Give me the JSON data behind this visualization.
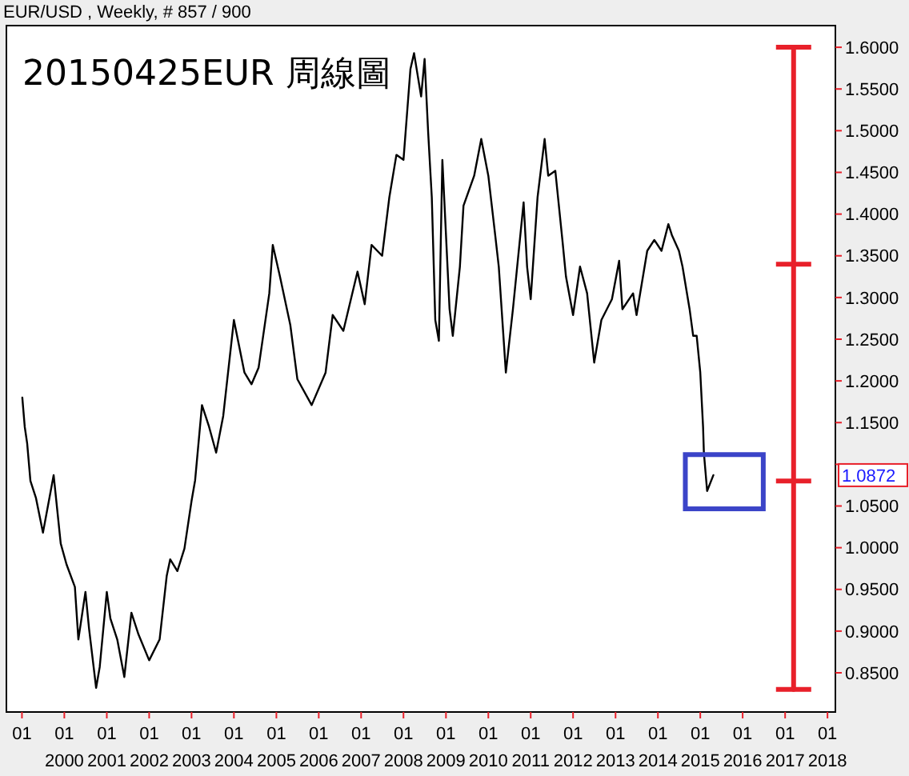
{
  "chart_data": {
    "type": "line",
    "title": "20150425EUR 周線圖",
    "subtitle": "EUR/USD , Weekly, # 857 / 900",
    "xlim": [
      "1998-08-20",
      "2018-03-10"
    ],
    "ylim": [
      0.803,
      1.626
    ],
    "xticks": [
      {
        "value": "1999-01-01",
        "label": "01"
      },
      {
        "value": "2000-01-01",
        "label": "01\n2000"
      },
      {
        "value": "2001-01-01",
        "label": "01\n2001"
      },
      {
        "value": "2002-01-01",
        "label": "01\n2002"
      },
      {
        "value": "2003-01-01",
        "label": "01\n2003"
      },
      {
        "value": "2004-01-01",
        "label": "01\n2004"
      },
      {
        "value": "2005-01-01",
        "label": "01\n2005"
      },
      {
        "value": "2006-01-01",
        "label": "01\n2006"
      },
      {
        "value": "2007-01-01",
        "label": "01\n2007"
      },
      {
        "value": "2008-01-01",
        "label": "01\n2008"
      },
      {
        "value": "2009-01-01",
        "label": "01\n2009"
      },
      {
        "value": "2010-01-01",
        "label": "01\n2010"
      },
      {
        "value": "2011-01-01",
        "label": "01\n2011"
      },
      {
        "value": "2012-01-01",
        "label": "01\n2012"
      },
      {
        "value": "2013-01-01",
        "label": "01\n2013"
      },
      {
        "value": "2014-01-01",
        "label": "01\n2014"
      },
      {
        "value": "2015-01-01",
        "label": "01\n2015"
      },
      {
        "value": "2016-01-01",
        "label": "01\n2016"
      },
      {
        "value": "2017-01-01",
        "label": "01\n2017"
      },
      {
        "value": "2018-01-01",
        "label": "01\n2018"
      }
    ],
    "yticks": [
      {
        "value": 0.85,
        "label": "0.8500"
      },
      {
        "value": 0.9,
        "label": "0.9000"
      },
      {
        "value": 0.95,
        "label": "0.9500"
      },
      {
        "value": 1,
        "label": "1.0000"
      },
      {
        "value": 1.05,
        "label": "1.0500"
      },
      {
        "value": 1.1,
        "label": null
      },
      {
        "value": 1.15,
        "label": "1.1500"
      },
      {
        "value": 1.2,
        "label": "1.2000"
      },
      {
        "value": 1.25,
        "label": "1.2500"
      },
      {
        "value": 1.3,
        "label": "1.3000"
      },
      {
        "value": 1.35,
        "label": "1.3500"
      },
      {
        "value": 1.4,
        "label": "1.4000"
      },
      {
        "value": 1.45,
        "label": "1.4500"
      },
      {
        "value": 1.5,
        "label": "1.5000"
      },
      {
        "value": 1.55,
        "label": "1.5500"
      },
      {
        "value": 1.6,
        "label": "1.6000"
      }
    ],
    "grid": false,
    "marker": "none",
    "line_style": "solid",
    "x": [
      "1999-01-04",
      "1999-01-25",
      "1999-02-15",
      "1999-03-15",
      "1999-05",
      "1999-07",
      "1999-10",
      "1999-12",
      "2000-01-20",
      "2000-04",
      "2000-05",
      "2000-07",
      "2000-08",
      "2000-10",
      "2000-11",
      "2001-01",
      "2001-02",
      "2001-04",
      "2001-06",
      "2001-08",
      "2001-10",
      "2002-01",
      "2002-04",
      "2002-06",
      "2002-07",
      "2002-09",
      "2002-11",
      "2003-01",
      "2003-02",
      "2003-04",
      "2003-06",
      "2003-08",
      "2003-10",
      "2004-01",
      "2004-04",
      "2004-06",
      "2004-08",
      "2004-11",
      "2004-12",
      "2005-02",
      "2005-05",
      "2005-07",
      "2005-11",
      "2006-03",
      "2006-05",
      "2006-08",
      "2006-12",
      "2007-02",
      "2007-04",
      "2007-07",
      "2007-09",
      "2007-11",
      "2008-01",
      "2008-03",
      "2008-04",
      "2008-06",
      "2008-07",
      "2008-08",
      "2008-09",
      "2008-10",
      "2008-11",
      "2008-12",
      "2009-02",
      "2009-03",
      "2009-05",
      "2009-06",
      "2009-09",
      "2009-11",
      "2010-01",
      "2010-03",
      "2010-04",
      "2010-06",
      "2010-08",
      "2010-11",
      "2010-12",
      "2011-01",
      "2011-03",
      "2011-05",
      "2011-06",
      "2011-08",
      "2011-10",
      "2011-11",
      "2012-01",
      "2012-03",
      "2012-05",
      "2012-07",
      "2012-09",
      "2012-12",
      "2013-02",
      "2013-03",
      "2013-06",
      "2013-07",
      "2013-10",
      "2013-12",
      "2014-02",
      "2014-04",
      "2014-05",
      "2014-07",
      "2014-08",
      "2014-10",
      "2014-11",
      "2014-12",
      "2015-01",
      "2015-01-25",
      "2015-02",
      "2015-03",
      "2015-04-24"
    ],
    "series": [
      {
        "color": "#000000",
        "values": [
          1.18,
          1.145,
          1.125,
          1.08,
          1.06,
          1.018,
          1.087,
          1.005,
          0.98,
          0.953,
          0.89,
          0.947,
          0.903,
          0.832,
          0.857,
          0.947,
          0.915,
          0.89,
          0.845,
          0.922,
          0.896,
          0.865,
          0.89,
          0.966,
          0.986,
          0.972,
          0.999,
          1.056,
          1.081,
          1.171,
          1.145,
          1.114,
          1.158,
          1.273,
          1.21,
          1.196,
          1.216,
          1.305,
          1.363,
          1.325,
          1.267,
          1.202,
          1.171,
          1.21,
          1.279,
          1.26,
          1.331,
          1.292,
          1.363,
          1.35,
          1.42,
          1.471,
          1.465,
          1.574,
          1.593,
          1.541,
          1.586,
          1.497,
          1.42,
          1.273,
          1.248,
          1.465,
          1.286,
          1.254,
          1.337,
          1.41,
          1.446,
          1.49,
          1.446,
          1.375,
          1.337,
          1.21,
          1.286,
          1.414,
          1.337,
          1.298,
          1.42,
          1.49,
          1.446,
          1.452,
          1.369,
          1.325,
          1.279,
          1.337,
          1.305,
          1.222,
          1.273,
          1.298,
          1.344,
          1.286,
          1.305,
          1.279,
          1.356,
          1.369,
          1.356,
          1.388,
          1.375,
          1.356,
          1.337,
          1.286,
          1.254,
          1.254,
          1.21,
          1.145,
          1.114,
          1.068,
          1.087
        ]
      },
      {
        "color": "#e8202a",
        "x": [
          "2017-03-15",
          "2017-03-15",
          "2017-03-15",
          "2017-03-15"
        ],
        "values": [
          0.83,
          1.08,
          1.34,
          1.6
        ]
      }
    ],
    "annotations": [
      "1.0872"
    ]
  }
}
